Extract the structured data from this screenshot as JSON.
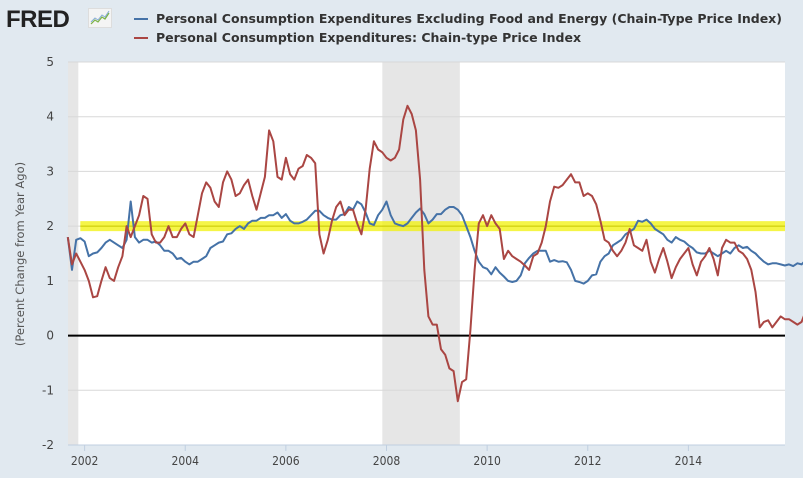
{
  "header": {
    "logo_text": "FRED",
    "logo_icon": "line-chart-icon"
  },
  "chart_data": {
    "type": "line",
    "title": "",
    "xlabel": "",
    "ylabel": "(Percent Change from Year Ago)",
    "ylim": [
      -2,
      5
    ],
    "yticks": [
      "5",
      "4",
      "3",
      "2",
      "1",
      "0",
      "-1",
      "-2"
    ],
    "ytick_values": [
      5,
      4,
      3,
      2,
      1,
      0,
      -1,
      -2
    ],
    "xticks": [
      "2002",
      "2004",
      "2006",
      "2008",
      "2010",
      "2012",
      "2014"
    ],
    "xtick_values": [
      2002,
      2004,
      2006,
      2008,
      2010,
      2012,
      2014
    ],
    "xlim": [
      2001.67,
      2015.92
    ],
    "grid": true,
    "legend_position": "top",
    "reference_line": {
      "value": 0,
      "color": "#000000"
    },
    "highlight_band": {
      "value": 2.0,
      "color": "#f2f20a"
    },
    "recessions": [
      {
        "start": 2001.25,
        "end": 2001.875,
        "color": "#e6e6e6"
      },
      {
        "start": 2007.917,
        "end": 2009.458,
        "color": "#e6e6e6"
      }
    ],
    "x_start": 2001.667,
    "x_step_months": 1,
    "series": [
      {
        "name": "Personal Consumption Expenditures Excluding Food and Energy (Chain-Type Price Index)",
        "color": "#4572a7",
        "values": [
          1.8,
          1.2,
          1.75,
          1.78,
          1.72,
          1.45,
          1.5,
          1.52,
          1.6,
          1.7,
          1.75,
          1.7,
          1.65,
          1.6,
          1.75,
          2.45,
          1.8,
          1.7,
          1.75,
          1.75,
          1.7,
          1.72,
          1.65,
          1.55,
          1.55,
          1.5,
          1.4,
          1.42,
          1.35,
          1.3,
          1.35,
          1.35,
          1.4,
          1.45,
          1.6,
          1.65,
          1.7,
          1.72,
          1.85,
          1.87,
          1.95,
          2.0,
          1.95,
          2.05,
          2.1,
          2.1,
          2.15,
          2.15,
          2.2,
          2.2,
          2.25,
          2.15,
          2.22,
          2.1,
          2.05,
          2.05,
          2.08,
          2.12,
          2.2,
          2.28,
          2.28,
          2.2,
          2.15,
          2.12,
          2.12,
          2.2,
          2.22,
          2.35,
          2.3,
          2.45,
          2.4,
          2.25,
          2.05,
          2.02,
          2.2,
          2.3,
          2.45,
          2.2,
          2.05,
          2.02,
          2.0,
          2.05,
          2.15,
          2.25,
          2.32,
          2.22,
          2.05,
          2.12,
          2.22,
          2.22,
          2.3,
          2.35,
          2.35,
          2.3,
          2.2,
          2.0,
          1.8,
          1.55,
          1.35,
          1.25,
          1.22,
          1.12,
          1.25,
          1.15,
          1.08,
          1.0,
          0.98,
          1.0,
          1.1,
          1.32,
          1.42,
          1.5,
          1.55,
          1.55,
          1.55,
          1.35,
          1.38,
          1.35,
          1.36,
          1.34,
          1.2,
          1.0,
          0.98,
          0.95,
          1.0,
          1.1,
          1.12,
          1.35,
          1.45,
          1.5,
          1.65,
          1.7,
          1.75,
          1.85,
          1.9,
          1.95,
          2.1,
          2.08,
          2.12,
          2.05,
          1.95,
          1.9,
          1.85,
          1.75,
          1.7,
          1.8,
          1.75,
          1.72,
          1.65,
          1.6,
          1.52,
          1.5,
          1.5,
          1.55,
          1.5,
          1.45,
          1.5,
          1.55,
          1.5,
          1.6,
          1.65,
          1.6,
          1.62,
          1.55,
          1.5,
          1.42,
          1.35,
          1.3,
          1.32,
          1.32,
          1.3,
          1.28,
          1.3,
          1.27,
          1.32,
          1.3,
          1.38,
          1.42
        ]
      },
      {
        "name": "Personal Consumption Expenditures: Chain-type Price Index",
        "color": "#aa4643",
        "values": [
          1.8,
          1.3,
          1.5,
          1.35,
          1.2,
          1.0,
          0.7,
          0.72,
          1.0,
          1.25,
          1.05,
          1.0,
          1.25,
          1.45,
          2.0,
          1.8,
          2.0,
          2.2,
          2.55,
          2.5,
          1.85,
          1.7,
          1.7,
          1.8,
          2.0,
          1.8,
          1.8,
          1.95,
          2.05,
          1.85,
          1.8,
          2.2,
          2.6,
          2.8,
          2.7,
          2.45,
          2.35,
          2.8,
          3.0,
          2.85,
          2.55,
          2.6,
          2.75,
          2.85,
          2.55,
          2.3,
          2.6,
          2.9,
          3.75,
          3.55,
          2.9,
          2.85,
          3.25,
          2.95,
          2.85,
          3.05,
          3.1,
          3.3,
          3.25,
          3.15,
          1.85,
          1.5,
          1.75,
          2.1,
          2.35,
          2.45,
          2.2,
          2.3,
          2.3,
          2.05,
          1.85,
          2.3,
          3.05,
          3.55,
          3.4,
          3.35,
          3.25,
          3.2,
          3.25,
          3.4,
          3.95,
          4.2,
          4.05,
          3.75,
          2.85,
          1.2,
          0.35,
          0.2,
          0.2,
          -0.25,
          -0.35,
          -0.6,
          -0.65,
          -1.2,
          -0.85,
          -0.8,
          0.1,
          1.2,
          2.05,
          2.2,
          2.0,
          2.2,
          2.05,
          1.95,
          1.4,
          1.55,
          1.45,
          1.4,
          1.35,
          1.28,
          1.2,
          1.45,
          1.5,
          1.7,
          2.0,
          2.45,
          2.72,
          2.7,
          2.75,
          2.85,
          2.95,
          2.8,
          2.8,
          2.55,
          2.6,
          2.55,
          2.4,
          2.1,
          1.75,
          1.7,
          1.55,
          1.45,
          1.55,
          1.7,
          1.95,
          1.65,
          1.6,
          1.55,
          1.75,
          1.35,
          1.15,
          1.4,
          1.6,
          1.35,
          1.05,
          1.25,
          1.4,
          1.5,
          1.6,
          1.3,
          1.1,
          1.35,
          1.45,
          1.6,
          1.4,
          1.1,
          1.6,
          1.75,
          1.7,
          1.7,
          1.55,
          1.5,
          1.4,
          1.2,
          0.8,
          0.15,
          0.25,
          0.28,
          0.15,
          0.25,
          0.35,
          0.3,
          0.3,
          0.25,
          0.2,
          0.25,
          0.45,
          0.6
        ]
      }
    ]
  }
}
